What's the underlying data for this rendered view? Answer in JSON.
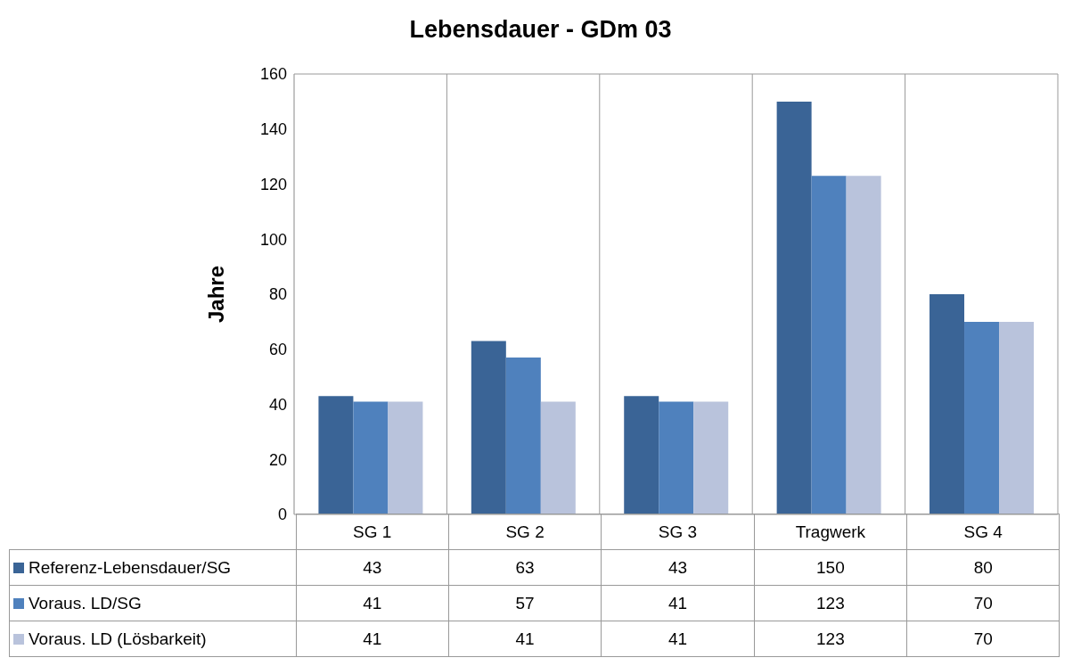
{
  "chart_data": {
    "type": "bar",
    "title": "Lebensdauer - GDm 03",
    "ylabel": "Jahre",
    "categories": [
      "SG 1",
      "SG 2",
      "SG 3",
      "Tragwerk",
      "SG 4"
    ],
    "series": [
      {
        "name": "Referenz-Lebensdauer/SG",
        "color": "#3a6496",
        "values": [
          43,
          63,
          43,
          150,
          80
        ]
      },
      {
        "name": "Voraus. LD/SG",
        "color": "#4f81bd",
        "values": [
          41,
          57,
          41,
          123,
          70
        ]
      },
      {
        "name": "Voraus. LD (Lösbarkeit)",
        "color": "#b9c3dc",
        "values": [
          41,
          41,
          41,
          123,
          70
        ]
      }
    ],
    "ylim": [
      0,
      160
    ],
    "yticks": [
      0,
      20,
      40,
      60,
      80,
      100,
      120,
      140,
      160
    ],
    "grid": "x",
    "legend": "bottom",
    "data_labels": true
  }
}
